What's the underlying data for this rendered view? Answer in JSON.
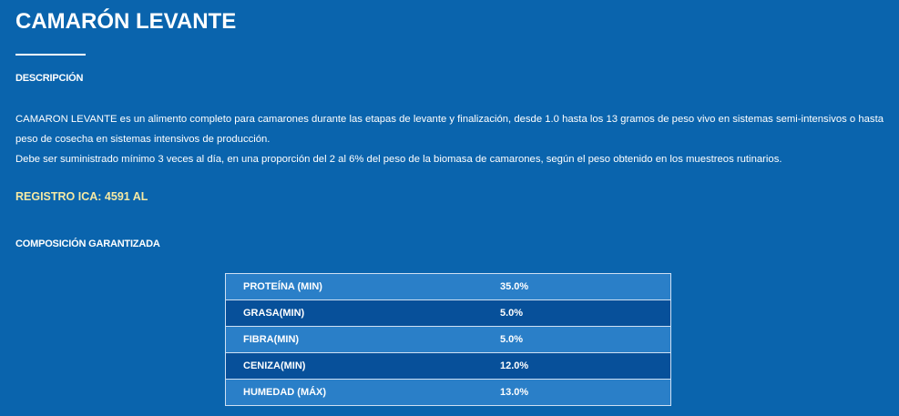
{
  "product": {
    "title": "CAMARÓN LEVANTE"
  },
  "description": {
    "heading": "DESCRIPCIÓN",
    "paragraph_1": "CAMARON LEVANTE es un alimento completo para camarones durante las etapas de levante y finalización, desde 1.0 hasta los 13 gramos de peso vivo en sistemas semi-intensivos o hasta peso de cosecha en sistemas intensivos de producción.",
    "paragraph_2": "Debe ser suministrado mínimo 3 veces al día, en una proporción del 2 al 6% del peso de la biomasa de camarones, según el peso obtenido en los muestreos rutinarios."
  },
  "registro": {
    "text": "REGISTRO ICA: 4591 AL"
  },
  "composition": {
    "heading": "COMPOSICIÓN GARANTIZADA",
    "rows": [
      {
        "label": "PROTEÍNA (MIN)",
        "value": "35.0%"
      },
      {
        "label": "GRASA(MIN)",
        "value": "5.0%"
      },
      {
        "label": "FIBRA(MIN)",
        "value": "5.0%"
      },
      {
        "label": "CENIZA(MIN)",
        "value": "12.0%"
      },
      {
        "label": "HUMEDAD (MÁX)",
        "value": "13.0%"
      }
    ]
  },
  "colors": {
    "background": "#0a64ad",
    "registro_text": "#f5e9a3",
    "row_light": "#2a7fc8",
    "row_dark": "#07509a"
  }
}
